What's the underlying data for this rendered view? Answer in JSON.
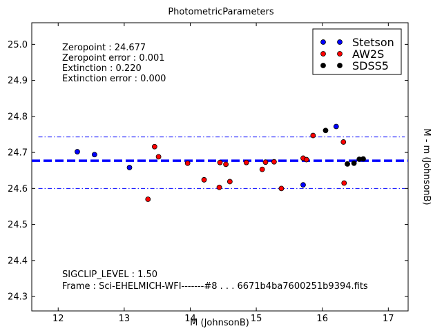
{
  "chart_data": {
    "type": "scatter",
    "title": "PhotometricParameters",
    "xlabel": "M (JohnsonB)",
    "ylabel": "M - m (JohnsonB)",
    "xlim": [
      11.6,
      17.3
    ],
    "ylim": [
      24.26,
      25.06
    ],
    "x_ticks": [
      12,
      13,
      14,
      15,
      16,
      17
    ],
    "y_ticks": [
      24.3,
      24.4,
      24.5,
      24.6,
      24.7,
      24.8,
      24.9,
      25.0
    ],
    "grid": false,
    "legend_position": "top-right",
    "series": [
      {
        "name": "Stetson",
        "color": "#0000ff",
        "points": [
          {
            "x": 12.29,
            "y": 24.702
          },
          {
            "x": 12.55,
            "y": 24.694
          },
          {
            "x": 13.08,
            "y": 24.658
          },
          {
            "x": 15.71,
            "y": 24.61
          },
          {
            "x": 16.21,
            "y": 24.772
          }
        ]
      },
      {
        "name": "AW2S",
        "color": "#ff0000",
        "points": [
          {
            "x": 13.36,
            "y": 24.57
          },
          {
            "x": 13.46,
            "y": 24.716
          },
          {
            "x": 13.52,
            "y": 24.688
          },
          {
            "x": 13.96,
            "y": 24.67
          },
          {
            "x": 14.21,
            "y": 24.624
          },
          {
            "x": 14.44,
            "y": 24.603
          },
          {
            "x": 14.45,
            "y": 24.672
          },
          {
            "x": 14.54,
            "y": 24.667
          },
          {
            "x": 14.6,
            "y": 24.619
          },
          {
            "x": 14.85,
            "y": 24.672
          },
          {
            "x": 15.09,
            "y": 24.653
          },
          {
            "x": 15.14,
            "y": 24.673
          },
          {
            "x": 15.27,
            "y": 24.674
          },
          {
            "x": 15.38,
            "y": 24.6
          },
          {
            "x": 15.71,
            "y": 24.684
          },
          {
            "x": 15.76,
            "y": 24.68
          },
          {
            "x": 15.86,
            "y": 24.747
          },
          {
            "x": 16.32,
            "y": 24.729
          },
          {
            "x": 16.33,
            "y": 24.615
          }
        ]
      },
      {
        "name": "SDSS5",
        "color": "#000000",
        "points": [
          {
            "x": 16.05,
            "y": 24.761
          },
          {
            "x": 16.38,
            "y": 24.668
          },
          {
            "x": 16.48,
            "y": 24.67
          },
          {
            "x": 16.56,
            "y": 24.681
          },
          {
            "x": 16.62,
            "y": 24.682
          }
        ]
      }
    ],
    "reference_lines": [
      {
        "y": 24.677,
        "style": "dashed",
        "color": "#0000ff"
      },
      {
        "y": 24.743,
        "style": "dashdot",
        "color": "#0000ff",
        "x_range": [
          11.7,
          17.25
        ]
      },
      {
        "y": 24.6,
        "style": "dashdot",
        "color": "#0000ff",
        "x_range": [
          11.7,
          17.25
        ]
      }
    ],
    "annotations_top": [
      "Zeropoint : 24.677",
      "Zeropoint error : 0.001",
      "Extinction : 0.220",
      "Extinction error : 0.000"
    ],
    "annotations_bottom": [
      "SIGCLIP_LEVEL : 1.50",
      "Frame : Sci-EHELMICH-WFI-------#8 . . . 6671b4ba7600251b9394.fits"
    ]
  }
}
